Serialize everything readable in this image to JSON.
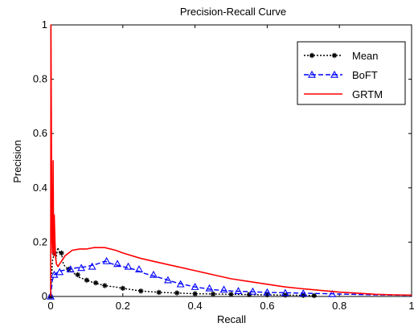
{
  "chart_data": {
    "type": "line",
    "title": "Precision-Recall Curve",
    "xlabel": "Recall",
    "ylabel": "Precision",
    "xlim": [
      0,
      1
    ],
    "ylim": [
      0,
      1
    ],
    "xticks": [
      "0",
      "0.2",
      "0.4",
      "0.6",
      "0.8",
      "1"
    ],
    "xtick_values": [
      0,
      0.2,
      0.4,
      0.6,
      0.8,
      1
    ],
    "yticks": [
      "0",
      "0.2",
      "0.4",
      "0.6",
      "0.8",
      "1"
    ],
    "ytick_values": [
      0,
      0.2,
      0.4,
      0.6,
      0.8,
      1
    ],
    "grid": false,
    "legend_position": "top-right",
    "series": [
      {
        "name": "Mean",
        "color": "#000000",
        "line_style": "dotted",
        "marker": "asterisk",
        "x": [
          0.0,
          0.005,
          0.01,
          0.015,
          0.02,
          0.025,
          0.03,
          0.035,
          0.04,
          0.05,
          0.06,
          0.07,
          0.08,
          0.1,
          0.12,
          0.15,
          0.18,
          0.2,
          0.25,
          0.3,
          0.4,
          0.5,
          0.6,
          0.7,
          0.73
        ],
        "y": [
          0.0,
          0.13,
          0.16,
          0.14,
          0.18,
          0.16,
          0.16,
          0.12,
          0.11,
          0.1,
          0.09,
          0.08,
          0.07,
          0.06,
          0.05,
          0.04,
          0.035,
          0.03,
          0.02,
          0.015,
          0.01,
          0.008,
          0.006,
          0.004,
          0.003
        ],
        "marker_x": [
          0.0,
          0.01,
          0.03,
          0.05,
          0.075,
          0.1,
          0.125,
          0.15,
          0.2,
          0.25,
          0.3,
          0.35,
          0.4,
          0.45,
          0.5,
          0.55,
          0.6,
          0.65,
          0.7,
          0.73
        ],
        "marker_y": [
          0.0,
          0.16,
          0.16,
          0.1,
          0.08,
          0.06,
          0.05,
          0.04,
          0.03,
          0.02,
          0.015,
          0.013,
          0.01,
          0.009,
          0.008,
          0.007,
          0.006,
          0.005,
          0.004,
          0.003
        ]
      },
      {
        "name": "BoFT",
        "color": "#0000ff",
        "line_style": "dashed",
        "marker": "triangle",
        "x": [
          0.0,
          0.005,
          0.01,
          0.02,
          0.03,
          0.05,
          0.07,
          0.1,
          0.13,
          0.15,
          0.17,
          0.2,
          0.23,
          0.26,
          0.3,
          0.35,
          0.4,
          0.45,
          0.5,
          0.6,
          0.7,
          0.8,
          0.9,
          1.0
        ],
        "y": [
          0.0,
          0.06,
          0.08,
          0.09,
          0.095,
          0.1,
          0.105,
          0.11,
          0.12,
          0.13,
          0.12,
          0.11,
          0.1,
          0.085,
          0.07,
          0.05,
          0.035,
          0.025,
          0.02,
          0.015,
          0.012,
          0.009,
          0.006,
          0.004
        ],
        "marker_x": [
          0.0,
          0.01,
          0.025,
          0.055,
          0.085,
          0.115,
          0.155,
          0.185,
          0.215,
          0.245,
          0.285,
          0.325,
          0.36,
          0.4,
          0.44,
          0.48,
          0.52,
          0.56,
          0.6,
          0.65,
          0.7,
          0.78
        ],
        "marker_y": [
          0.0,
          0.08,
          0.09,
          0.1,
          0.105,
          0.11,
          0.13,
          0.12,
          0.11,
          0.1,
          0.08,
          0.06,
          0.045,
          0.035,
          0.03,
          0.025,
          0.02,
          0.018,
          0.015,
          0.013,
          0.011,
          0.009
        ]
      },
      {
        "name": "GRTM",
        "color": "#ff0000",
        "line_style": "solid",
        "marker": "none",
        "x": [
          0.0,
          0.001,
          0.002,
          0.003,
          0.004,
          0.005,
          0.006,
          0.007,
          0.008,
          0.009,
          0.01,
          0.012,
          0.014,
          0.016,
          0.02,
          0.025,
          0.03,
          0.04,
          0.05,
          0.06,
          0.08,
          0.1,
          0.12,
          0.15,
          0.18,
          0.2,
          0.25,
          0.3,
          0.35,
          0.4,
          0.45,
          0.5,
          0.55,
          0.6,
          0.65,
          0.7,
          0.75,
          0.8,
          0.85,
          0.9,
          0.95,
          1.0
        ],
        "y": [
          0.0,
          1.0,
          0.65,
          0.35,
          0.2,
          0.16,
          0.3,
          0.5,
          0.22,
          0.15,
          0.3,
          0.2,
          0.14,
          0.12,
          0.11,
          0.12,
          0.13,
          0.15,
          0.16,
          0.17,
          0.175,
          0.175,
          0.18,
          0.18,
          0.17,
          0.16,
          0.14,
          0.125,
          0.11,
          0.095,
          0.08,
          0.065,
          0.055,
          0.045,
          0.035,
          0.028,
          0.022,
          0.016,
          0.012,
          0.008,
          0.006,
          0.005
        ]
      }
    ]
  }
}
